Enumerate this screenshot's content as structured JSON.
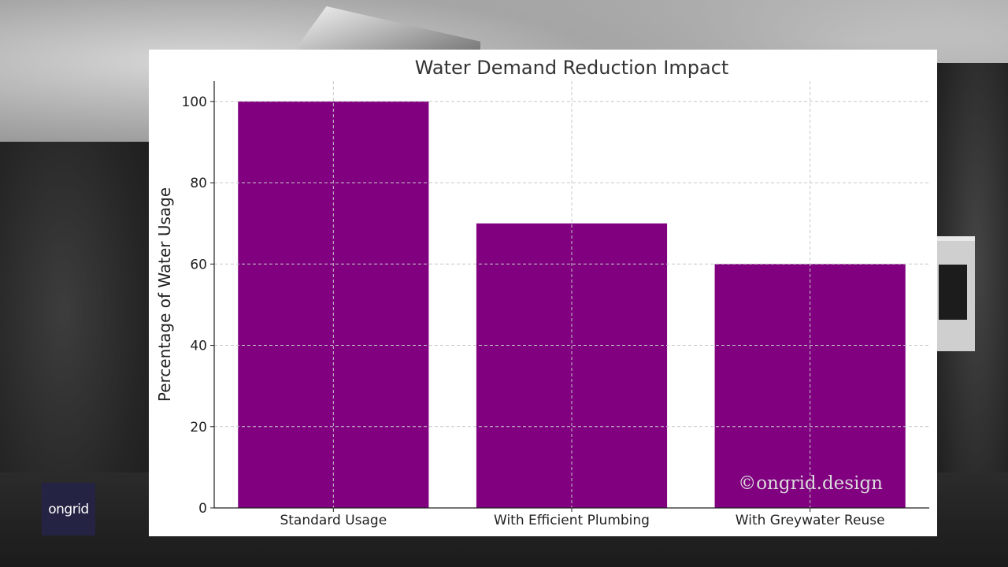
{
  "logo": {
    "text": "ongrid",
    "bg_color": "#252343"
  },
  "chart_data": {
    "type": "bar",
    "title": "Water Demand Reduction Impact",
    "xlabel": "",
    "ylabel": "Percentage of Water Usage",
    "categories": [
      "Standard Usage",
      "With Efficient Plumbing",
      "With Greywater Reuse"
    ],
    "values": [
      100,
      70,
      60
    ],
    "ylim": [
      0,
      105
    ],
    "yticks": [
      0,
      20,
      40,
      60,
      80,
      100
    ],
    "grid": true,
    "bar_color": "#800080",
    "watermark": "©ongrid.design"
  }
}
